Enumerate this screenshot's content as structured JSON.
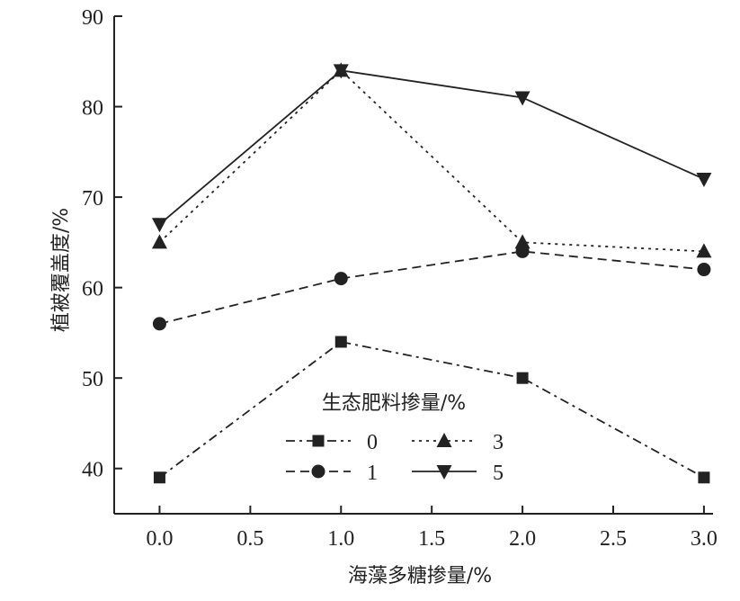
{
  "chart_data": {
    "type": "line",
    "xlabel": "海藻多糖掺量/%",
    "ylabel": "植被覆盖度/%",
    "x": [
      0.0,
      1.0,
      2.0,
      3.0
    ],
    "xlim": [
      -0.25,
      3.05
    ],
    "ylim": [
      35,
      90
    ],
    "xticks": [
      "0.0",
      "0.5",
      "1.0",
      "1.5",
      "2.0",
      "2.5",
      "3.0"
    ],
    "yticks": [
      "40",
      "50",
      "60",
      "70",
      "80",
      "90"
    ],
    "legend": {
      "title": "生态肥料掺量/%",
      "placement": "bottom-center"
    },
    "series": [
      {
        "name": "0",
        "values": [
          39,
          54,
          50,
          39
        ],
        "marker": "square",
        "line": "dashdot"
      },
      {
        "name": "1",
        "values": [
          56,
          61,
          64,
          62
        ],
        "marker": "circle",
        "line": "dashed"
      },
      {
        "name": "3",
        "values": [
          65,
          84,
          65,
          64
        ],
        "marker": "triangle-up",
        "line": "dotted"
      },
      {
        "name": "5",
        "values": [
          67,
          84,
          81,
          72
        ],
        "marker": "triangle-down",
        "line": "solid"
      }
    ],
    "color": "#222222"
  }
}
